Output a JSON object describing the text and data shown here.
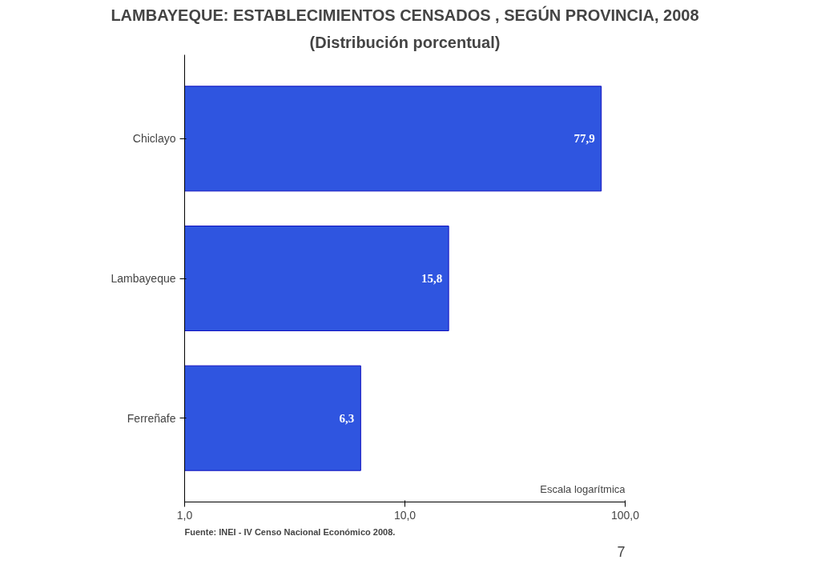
{
  "chart_data": {
    "type": "bar",
    "orientation": "horizontal",
    "title": "LAMBAYEQUE: ESTABLECIMIENTOS CENSADOS , SEGÚN PROVINCIA, 2008",
    "subtitle": "(Distribución porcentual)",
    "categories": [
      "Chiclayo",
      "Lambayeque",
      "Ferreñafe"
    ],
    "values": [
      77.9,
      15.8,
      6.3
    ],
    "value_labels": [
      "77,9",
      "15,8",
      "6,3"
    ],
    "color": "#2f55e0",
    "log": "x",
    "xlim": [
      1,
      100
    ],
    "xticks": [
      {
        "value": 1,
        "label": "1,0"
      },
      {
        "value": 10,
        "label": "10,0"
      },
      {
        "value": 100,
        "label": "100,0"
      }
    ],
    "grid": false,
    "annotations": [
      "Escala logarítmica",
      "Fuente: INEI - IV Censo Nacional Económico 2008.",
      "7"
    ]
  }
}
